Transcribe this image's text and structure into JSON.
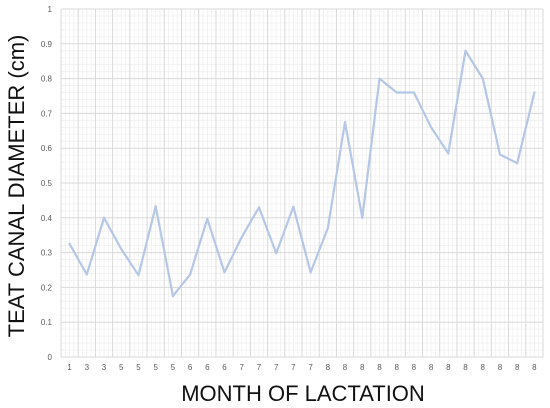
{
  "chart_data": {
    "type": "line",
    "title": "",
    "xlabel": "MONTH OF LACTATION",
    "ylabel": "TEAT CANAL DIAMETER (cm)",
    "ylim": [
      0,
      1
    ],
    "y_ticks": [
      "0",
      "0.1",
      "0.2",
      "0.3",
      "0.4",
      "0.5",
      "0.6",
      "0.7",
      "0.8",
      "0.9",
      "1"
    ],
    "categories": [
      "1",
      "3",
      "3",
      "5",
      "5",
      "5",
      "5",
      "6",
      "6",
      "6",
      "7",
      "7",
      "7",
      "7",
      "7",
      "8",
      "8",
      "8",
      "8",
      "8",
      "8",
      "8",
      "8",
      "8",
      "8",
      "8",
      "8",
      "8"
    ],
    "series": [
      {
        "values": [
          0.325,
          0.237,
          0.4,
          0.31,
          0.235,
          0.433,
          0.175,
          0.237,
          0.397,
          0.243,
          0.345,
          0.43,
          0.298,
          0.432,
          0.243,
          0.37,
          0.675,
          0.4,
          0.8,
          0.76,
          0.76,
          0.66,
          0.585,
          0.88,
          0.8,
          0.582,
          0.557,
          0.76
        ],
        "color": "#b4c7e7"
      }
    ],
    "grid": true,
    "minor_grid": true,
    "legend": "none"
  }
}
